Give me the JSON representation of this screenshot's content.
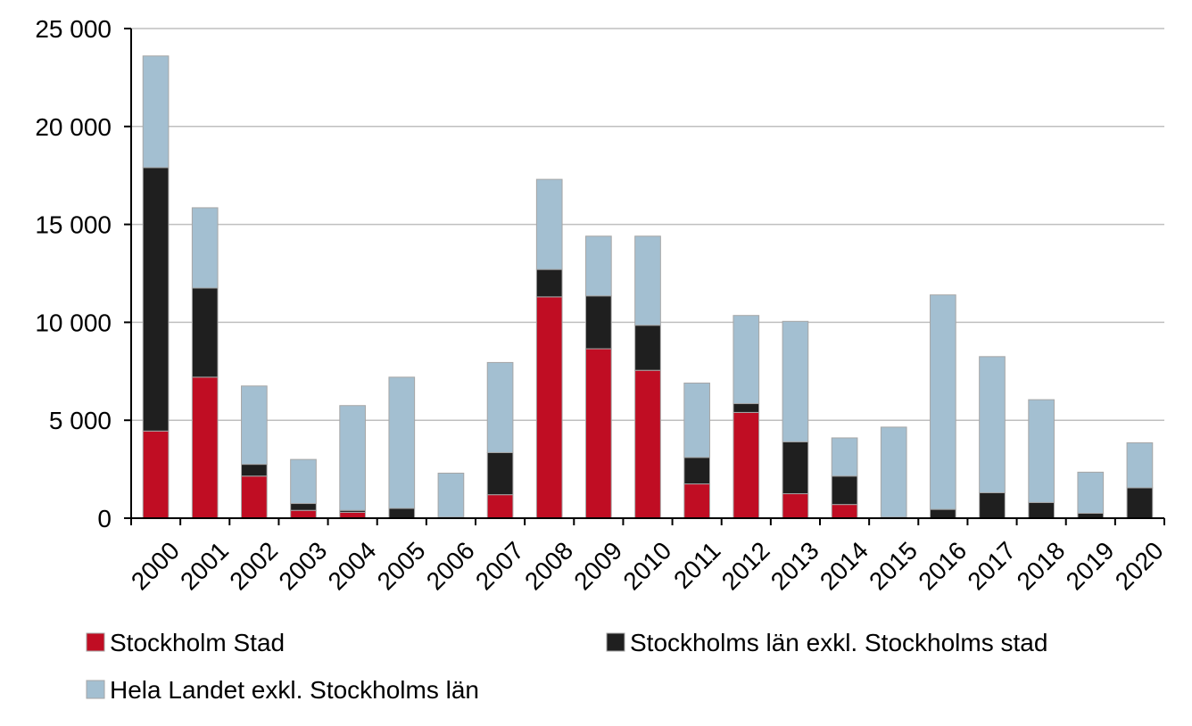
{
  "chart_data": {
    "type": "bar",
    "stacked": true,
    "title": "",
    "xlabel": "",
    "ylabel": "",
    "ylim": [
      0,
      25000
    ],
    "y_ticks": [
      0,
      5000,
      10000,
      15000,
      20000,
      25000
    ],
    "y_tick_labels": [
      "0",
      "5 000",
      "10 000",
      "15 000",
      "20 000",
      "25 000"
    ],
    "grid": "horizontal",
    "legend_position": "bottom",
    "categories": [
      "2000",
      "2001",
      "2002",
      "2003",
      "2004",
      "2005",
      "2006",
      "2007",
      "2008",
      "2009",
      "2010",
      "2011",
      "2012",
      "2013",
      "2014",
      "2015",
      "2016",
      "2017",
      "2018",
      "2019",
      "2020"
    ],
    "series": [
      {
        "name": "Stockholm Stad",
        "color": "#c00d23",
        "values": [
          4450,
          7200,
          2150,
          400,
          300,
          0,
          0,
          1200,
          11300,
          8650,
          7550,
          1750,
          5400,
          1250,
          700,
          0,
          0,
          0,
          0,
          0,
          0
        ]
      },
      {
        "name": "Stockholms län exkl. Stockholms stad",
        "color": "#1f1f1f",
        "values": [
          13450,
          4550,
          600,
          350,
          100,
          500,
          50,
          2150,
          1400,
          2700,
          2300,
          1350,
          450,
          2650,
          1450,
          50,
          450,
          1300,
          800,
          250,
          1550
        ]
      },
      {
        "name": "Hela Landet exkl. Stockholms län",
        "color": "#a3bfd1",
        "values": [
          5700,
          4100,
          4000,
          2250,
          5350,
          6700,
          2250,
          4600,
          4600,
          3050,
          4550,
          3800,
          4500,
          6150,
          1950,
          4600,
          10950,
          6950,
          5250,
          2100,
          2300
        ]
      }
    ]
  }
}
